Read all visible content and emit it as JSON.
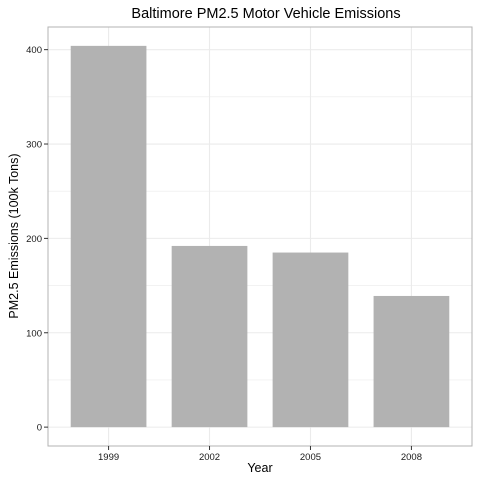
{
  "chart_data": {
    "type": "bar",
    "title": "Baltimore PM2.5 Motor Vehicle Emissions",
    "xlabel": "Year",
    "ylabel": "PM2.5 Emissions (100k Tons)",
    "categories": [
      "1999",
      "2002",
      "2005",
      "2008"
    ],
    "values": [
      404,
      192,
      185,
      139
    ],
    "ylim": [
      -20,
      424
    ],
    "yticks": [
      0,
      100,
      200,
      300,
      400
    ],
    "yminor": [
      50,
      150,
      250,
      350
    ],
    "grid": true,
    "legend": "none",
    "bar_color": "#b2b2b2",
    "grid_color": "#ebebeb",
    "panel_border_color": "#b3b3b3"
  }
}
